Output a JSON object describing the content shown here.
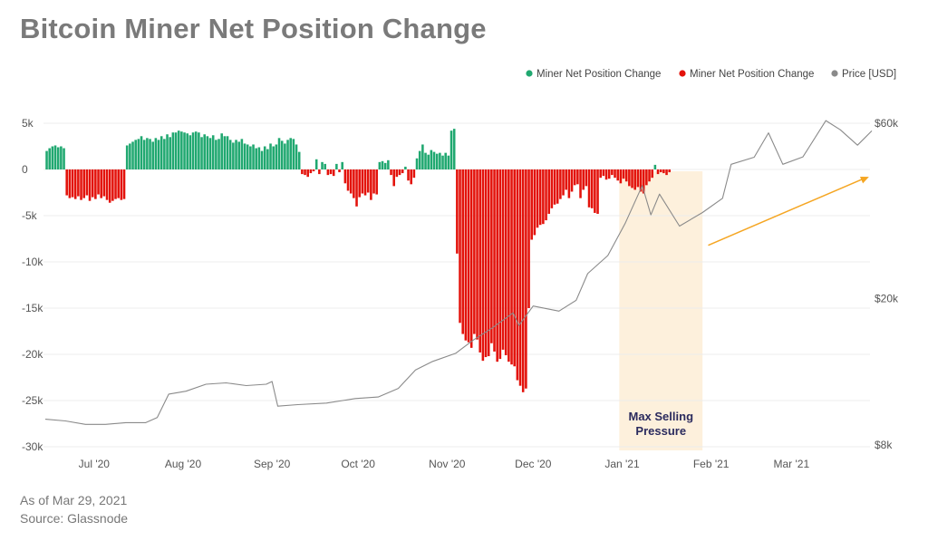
{
  "title": "Bitcoin Miner Net Position Change",
  "footer": {
    "as_of": "As of Mar 29, 2021",
    "source": "Source: Glassnode"
  },
  "chart_data": {
    "type": "bar",
    "title": "Bitcoin Miner Net Position Change",
    "legend": [
      {
        "name": "Miner Net Position Change",
        "color": "#20a870",
        "marker": "circle"
      },
      {
        "name": "Miner Net Position Change",
        "color": "#e3120b",
        "marker": "circle"
      },
      {
        "name": "Price [USD]",
        "color": "#8a8a8a",
        "marker": "circle"
      }
    ],
    "legend_position": "top-right",
    "y_left": {
      "ticks": [
        5000,
        0,
        -5000,
        -10000,
        -15000,
        -20000,
        -25000,
        -30000
      ],
      "tick_labels": [
        "5k",
        "0",
        "-5k",
        "-10k",
        "-15k",
        "-20k",
        "-25k",
        "-30k"
      ],
      "range": [
        -30000,
        5000
      ]
    },
    "y_right": {
      "scale": "log",
      "ticks": [
        60000,
        20000,
        8000
      ],
      "tick_labels": [
        "$60k",
        "$20k",
        "$8k"
      ],
      "range": [
        8000,
        60000
      ]
    },
    "x_axis": {
      "start": "2020-06-14",
      "end": "2021-03-29",
      "ticks": [
        "2020-07-01",
        "2020-08-01",
        "2020-09-01",
        "2020-10-01",
        "2020-11-01",
        "2020-12-01",
        "2021-01-01",
        "2021-02-01",
        "2021-03-01"
      ],
      "tick_labels": [
        "Jul '20",
        "Aug '20",
        "Sep '20",
        "Oct '20",
        "Nov '20",
        "Dec '20",
        "Jan '21",
        "Feb '21",
        "Mar '21"
      ]
    },
    "grid": true,
    "annotations": [
      {
        "text_lines": [
          "Max Selling",
          "Pressure"
        ],
        "shaded_range": [
          "2020-12-31",
          "2021-01-29"
        ],
        "shade_color": "#fdf0dc"
      },
      {
        "type": "arrow",
        "color": "#f5a623",
        "from": {
          "date": "2021-01-31",
          "value": -8200
        },
        "to": {
          "date": "2021-03-28",
          "value": -800
        }
      }
    ],
    "series": [
      {
        "name": "Miner Net Position Change",
        "axis": "left",
        "positive_color": "#20a870",
        "negative_color": "#e3120b",
        "unit": "day",
        "values": [
          2000,
          2300,
          2500,
          2600,
          2400,
          2500,
          2300,
          -2800,
          -3100,
          -3000,
          -3200,
          -2900,
          -3300,
          -3100,
          -2800,
          -3400,
          -3000,
          -3200,
          -2700,
          -3100,
          -2900,
          -3300,
          -3600,
          -3400,
          -3200,
          -3100,
          -3300,
          -3200,
          2600,
          2800,
          3000,
          3200,
          3300,
          3600,
          3200,
          3400,
          3300,
          3000,
          3400,
          3200,
          3600,
          3300,
          3800,
          3500,
          4000,
          4000,
          4200,
          4100,
          4000,
          3900,
          3700,
          4000,
          4100,
          4000,
          3500,
          3800,
          3600,
          3400,
          3700,
          3200,
          3300,
          3900,
          3600,
          3600,
          3200,
          2900,
          3200,
          3000,
          3300,
          2800,
          2700,
          2500,
          2700,
          2300,
          2400,
          2000,
          2500,
          2200,
          2800,
          2500,
          2700,
          3400,
          3100,
          2800,
          3200,
          3400,
          3300,
          2700,
          1900,
          -500,
          -600,
          -800,
          -400,
          -200,
          1100,
          -500,
          800,
          600,
          -600,
          -500,
          -700,
          600,
          -300,
          800,
          -1500,
          -2300,
          -2600,
          -3100,
          -4000,
          -3000,
          -2600,
          -2800,
          -2500,
          -3300,
          -2600,
          -2700,
          800,
          900,
          700,
          1000,
          -600,
          -1800,
          -800,
          -600,
          -400,
          300,
          -1200,
          -1600,
          -900,
          1200,
          2000,
          2700,
          1800,
          1600,
          2100,
          1900,
          1700,
          1800,
          1500,
          1800,
          1500,
          4200,
          4400,
          -9100,
          -16600,
          -17800,
          -18500,
          -18700,
          -19300,
          -17800,
          -18400,
          -19800,
          -20700,
          -20300,
          -20200,
          -18800,
          -19700,
          -20800,
          -20500,
          -19500,
          -20100,
          -20800,
          -21100,
          -21300,
          -22800,
          -23400,
          -24100,
          -23700,
          -15000,
          -7600,
          -7100,
          -6300,
          -6000,
          -5900,
          -5500,
          -4800,
          -4200,
          -3800,
          -3700,
          -3200,
          -2800,
          -2200,
          -3100,
          -2400,
          -1700,
          -1600,
          -3100,
          -2200,
          -1800,
          -4100,
          -4200,
          -4700,
          -4800,
          -900,
          -700,
          -1100,
          -1000,
          -600,
          -900,
          -1200,
          -1500,
          -1000,
          -1300,
          -1800,
          -2000,
          -2200,
          -1900,
          -2400,
          -2600,
          -1700,
          -1300,
          -900,
          500,
          -500,
          -300,
          -400,
          -600,
          -300
        ]
      },
      {
        "name": "Price [USD]",
        "axis": "right",
        "color": "#8a8a8a",
        "points": [
          [
            "2020-06-14",
            9400
          ],
          [
            "2020-06-21",
            9300
          ],
          [
            "2020-06-28",
            9100
          ],
          [
            "2020-07-05",
            9100
          ],
          [
            "2020-07-12",
            9200
          ],
          [
            "2020-07-19",
            9200
          ],
          [
            "2020-07-23",
            9500
          ],
          [
            "2020-07-27",
            11000
          ],
          [
            "2020-08-02",
            11200
          ],
          [
            "2020-08-09",
            11700
          ],
          [
            "2020-08-16",
            11800
          ],
          [
            "2020-08-23",
            11600
          ],
          [
            "2020-08-30",
            11700
          ],
          [
            "2020-09-01",
            11900
          ],
          [
            "2020-09-03",
            10200
          ],
          [
            "2020-09-10",
            10300
          ],
          [
            "2020-09-20",
            10400
          ],
          [
            "2020-09-30",
            10700
          ],
          [
            "2020-10-08",
            10800
          ],
          [
            "2020-10-15",
            11400
          ],
          [
            "2020-10-21",
            12800
          ],
          [
            "2020-10-27",
            13500
          ],
          [
            "2020-11-04",
            14200
          ],
          [
            "2020-11-10",
            15400
          ],
          [
            "2020-11-17",
            16700
          ],
          [
            "2020-11-24",
            18300
          ],
          [
            "2020-11-26",
            16900
          ],
          [
            "2020-12-01",
            19100
          ],
          [
            "2020-12-10",
            18500
          ],
          [
            "2020-12-16",
            19800
          ],
          [
            "2020-12-20",
            23400
          ],
          [
            "2020-12-27",
            26200
          ],
          [
            "2021-01-02",
            32000
          ],
          [
            "2021-01-08",
            40600
          ],
          [
            "2021-01-11",
            33800
          ],
          [
            "2021-01-14",
            38500
          ],
          [
            "2021-01-21",
            31500
          ],
          [
            "2021-01-29",
            34300
          ],
          [
            "2021-02-05",
            37500
          ],
          [
            "2021-02-08",
            46400
          ],
          [
            "2021-02-16",
            48500
          ],
          [
            "2021-02-21",
            56500
          ],
          [
            "2021-02-26",
            46400
          ],
          [
            "2021-03-05",
            48600
          ],
          [
            "2021-03-13",
            61000
          ],
          [
            "2021-03-18",
            57600
          ],
          [
            "2021-03-24",
            52300
          ],
          [
            "2021-03-29",
            57200
          ]
        ]
      }
    ]
  }
}
